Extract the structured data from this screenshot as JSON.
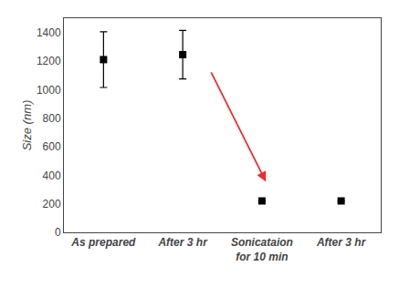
{
  "chart_data": {
    "type": "scatter",
    "categories": [
      "As prepared",
      "After 3 hr",
      "Sonicataion\nfor 10 min",
      "After 3 hr"
    ],
    "values": [
      1210,
      1245,
      220,
      220
    ],
    "yerr": [
      195,
      170,
      0,
      0
    ],
    "color": "black",
    "marker": "square",
    "ylabel": "Size (nm)",
    "ylim": [
      0,
      1500
    ],
    "yticks": [
      0,
      200,
      400,
      600,
      800,
      1000,
      1200,
      1400
    ],
    "grid": false,
    "annotations": [
      {
        "x_start": 1.35,
        "y_start": 1130,
        "x_end": 2.05,
        "y_end": 355,
        "color": "#e83030"
      }
    ]
  }
}
